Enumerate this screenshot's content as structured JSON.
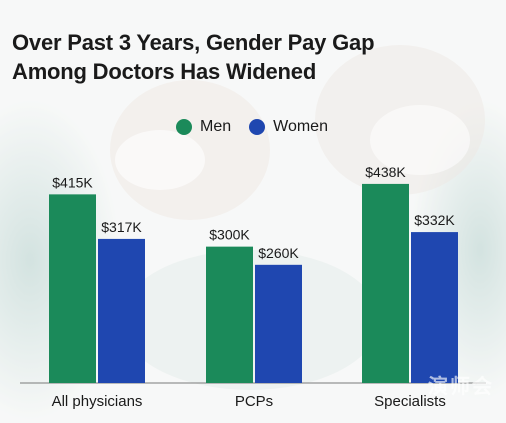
{
  "chart_data": {
    "type": "bar",
    "title_lines": [
      "Over Past 3 Years, Gender Pay Gap",
      "Among Doctors Has Widened"
    ],
    "categories": [
      "All physicians",
      "PCPs",
      "Specialists"
    ],
    "series": [
      {
        "name": "Men",
        "color": "#1b8a5a",
        "values": [
          415,
          300,
          438
        ],
        "labels": [
          "$415K",
          "$300K",
          "$438K"
        ]
      },
      {
        "name": "Women",
        "color": "#1f47b0",
        "values": [
          317,
          260,
          332
        ],
        "labels": [
          "$317K",
          "$260K",
          "$332K"
        ]
      }
    ],
    "unit": "$K",
    "ylim": [
      0,
      440
    ],
    "grid": false,
    "legend_position": "top-center"
  },
  "watermark": "演师会"
}
